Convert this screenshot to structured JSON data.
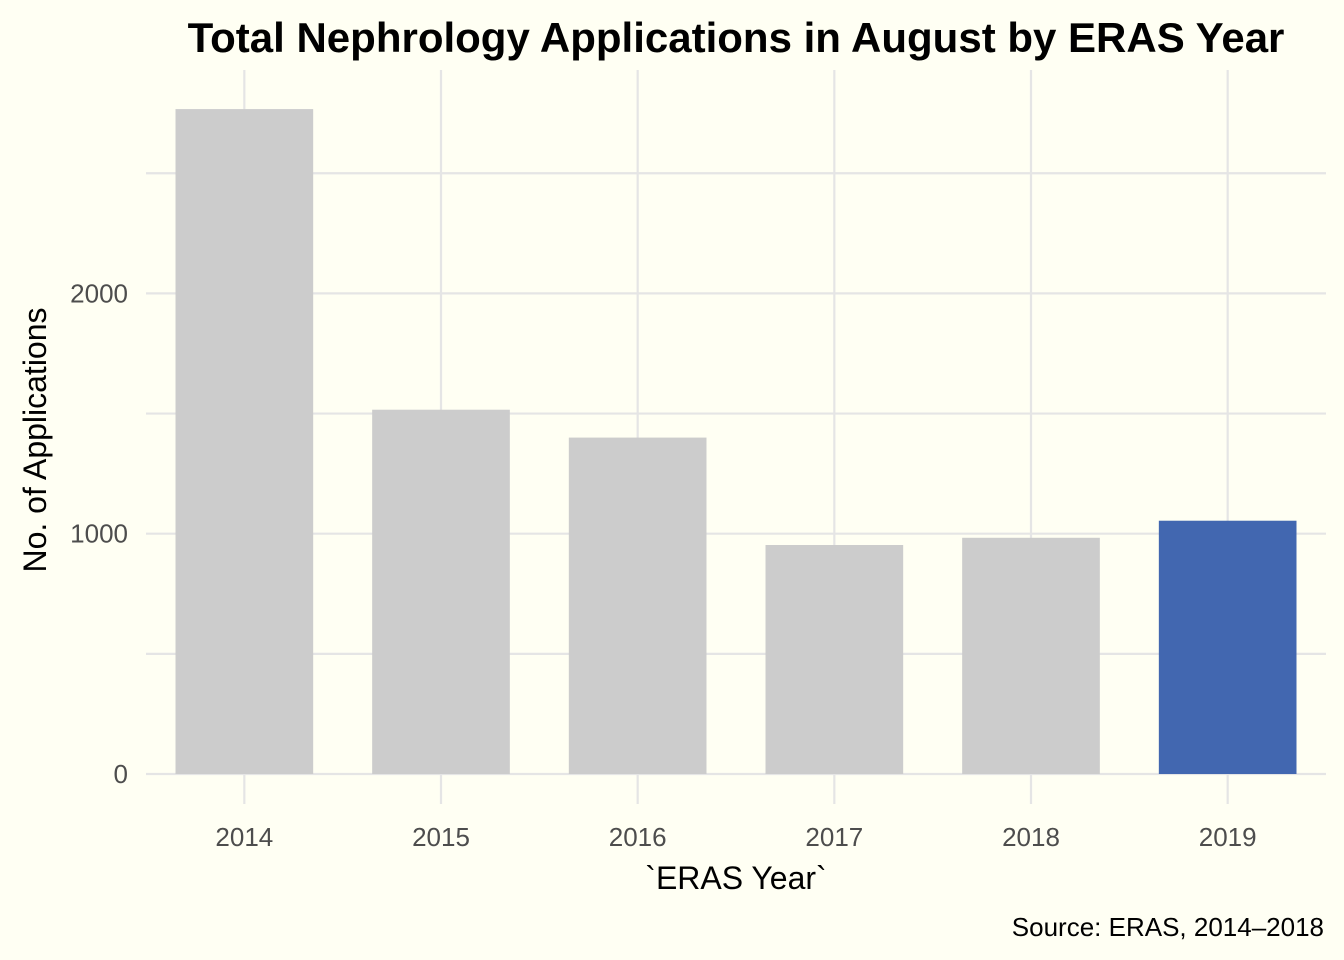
{
  "chart_data": {
    "type": "bar",
    "title": "Total Nephrology Applications in August by ERAS Year",
    "xlabel": "`ERAS Year`",
    "ylabel": "No. of Applications",
    "caption": "Source: ERAS, 2014–2018",
    "categories": [
      "2014",
      "2015",
      "2016",
      "2017",
      "2018",
      "2019"
    ],
    "values": [
      2767,
      1516,
      1400,
      953,
      983,
      1054
    ],
    "highlight_category": "2019",
    "colors": {
      "default_bar": "#cccccc",
      "highlight_bar": "#4267b0",
      "background": "#fffff3",
      "grid": "#e5e5e5"
    },
    "y_ticks": [
      0,
      1000,
      2000
    ],
    "y_tick_labels": [
      "0",
      "1000",
      "2000"
    ],
    "ylim": [
      0,
      2900
    ],
    "grid": true,
    "legend": "none"
  }
}
